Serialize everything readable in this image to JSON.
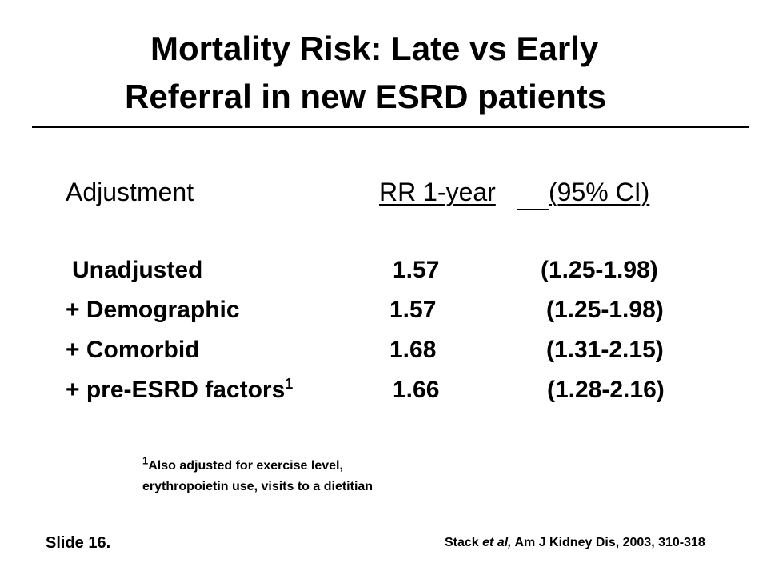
{
  "title": {
    "line1": "Mortality Risk: Late vs Early",
    "line2": "Referral in new ESRD patients"
  },
  "table": {
    "headers": {
      "adjustment": "Adjustment",
      "rr": "RR 1-year",
      "ci": "(95% CI)"
    },
    "rows": [
      {
        "label": "Unadjusted",
        "sup": "",
        "rr": "1.57",
        "ci": "(1.25-1.98)"
      },
      {
        "label": "+ Demographic",
        "sup": "",
        "rr": "1.57",
        "ci": "(1.25-1.98)"
      },
      {
        "label": "+ Comorbid",
        "sup": "",
        "rr": "1.68",
        "ci": "(1.31-2.15)"
      },
      {
        "label": "+ pre-ESRD factors",
        "sup": "1",
        "rr": "1.66",
        "ci": "(1.28-2.16)"
      }
    ]
  },
  "footnote": {
    "marker": "1",
    "line1": "Also adjusted for exercise level,",
    "line2": "erythropoietin use, visits to a dietitian"
  },
  "slide_label": "Slide 16.",
  "citation": {
    "author": "Stack ",
    "etal": "et al,",
    "rest": " Am J Kidney Dis, 2003, 310-318"
  }
}
